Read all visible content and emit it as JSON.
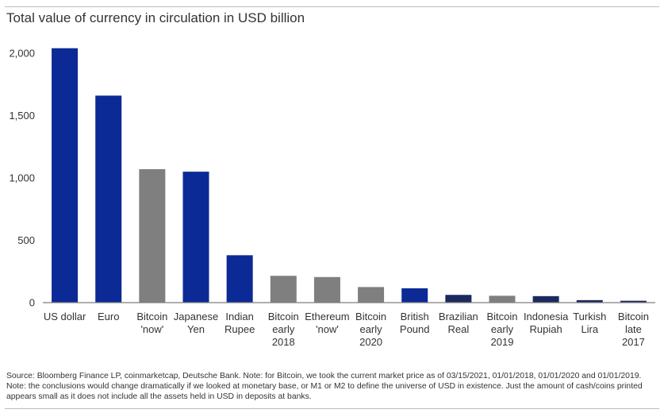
{
  "chart_data": {
    "type": "bar",
    "title": "Total value of currency in circulation in USD billion",
    "xlabel": "",
    "ylabel": "",
    "ylim": [
      0,
      2000
    ],
    "yticks": [
      0,
      500,
      1000,
      1500,
      2000
    ],
    "ytick_labels": [
      "0",
      "500",
      "1,000",
      "1,500",
      "2,000"
    ],
    "grid": false,
    "categories": [
      [
        "US dollar"
      ],
      [
        "Euro"
      ],
      [
        "Bitcoin",
        "'now'"
      ],
      [
        "Japanese",
        "Yen"
      ],
      [
        "Indian",
        "Rupee"
      ],
      [
        "Bitcoin",
        "early",
        "2018"
      ],
      [
        "Ethereum",
        "'now'"
      ],
      [
        "Bitcoin",
        "early",
        "2020"
      ],
      [
        "British",
        "Pound"
      ],
      [
        "Brazilian",
        "Real"
      ],
      [
        "Bitcoin",
        "early",
        "2019"
      ],
      [
        "Indonesia",
        "Rupiah"
      ],
      [
        "Turkish",
        "Lira"
      ],
      [
        "Bitcoin",
        "late",
        "2017"
      ]
    ],
    "values": [
      2040,
      1660,
      1070,
      1050,
      380,
      215,
      205,
      125,
      115,
      62,
      55,
      52,
      20,
      15
    ],
    "bar_colors": [
      "#0b2a96",
      "#0b2a96",
      "#7f7f7f",
      "#0b2a96",
      "#0b2a96",
      "#7f7f7f",
      "#7f7f7f",
      "#7f7f7f",
      "#0b2a96",
      "#1a2a5e",
      "#7f7f7f",
      "#1a2a5e",
      "#1a2a5e",
      "#1a2a5e"
    ]
  },
  "source_note": "Source: Bloomberg Finance LP, coinmarketcap, Deutsche Bank. Note: for Bitcoin, we took the current market price as of 03/15/2021, 01/01/2018, 01/01/2020 and 01/01/2019. Note: the conclusions would change dramatically if we looked at monetary base, or M1 or M2 to define the universe of USD in existence. Just the amount of cash/coins printed appears small as it does not include all the assets held in USD in deposits at banks.",
  "colors": {
    "axis": "#7f7f7f",
    "text": "#333333",
    "rule": "#bdbdbd"
  }
}
